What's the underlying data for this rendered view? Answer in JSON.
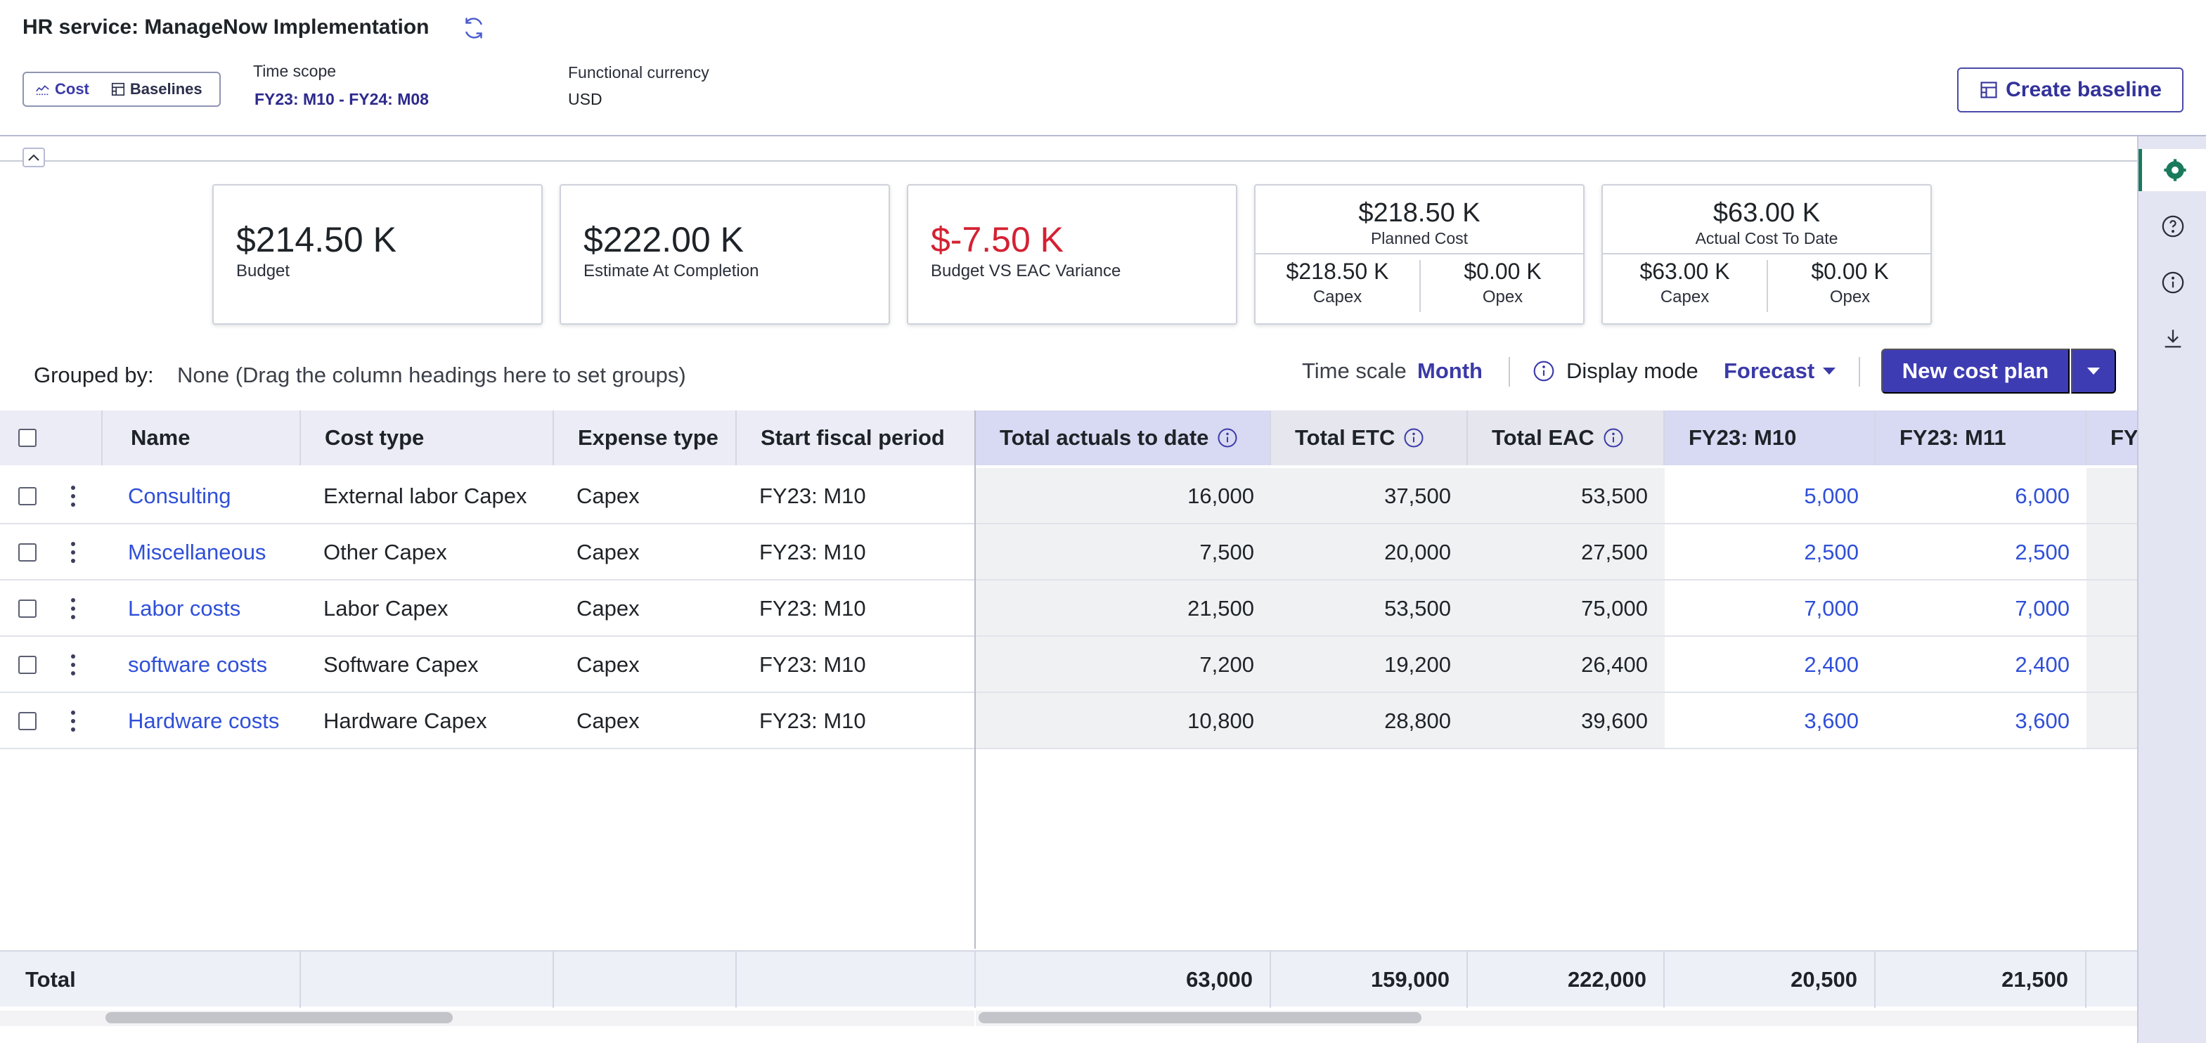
{
  "header": {
    "title": "HR service: ManageNow Implementation",
    "toggle": {
      "cost_label": "Cost",
      "baselines_label": "Baselines"
    },
    "time_scope": {
      "label": "Time scope",
      "value": "FY23: M10 - FY24: M08"
    },
    "currency": {
      "label": "Functional currency",
      "value": "USD"
    },
    "create_baseline_label": "Create baseline"
  },
  "cards": {
    "budget": {
      "value": "$214.50 K",
      "label": "Budget"
    },
    "eac": {
      "value": "$222.00 K",
      "label": "Estimate At Completion"
    },
    "variance": {
      "value": "$-7.50 K",
      "label": "Budget VS EAC Variance"
    },
    "planned": {
      "value": "$218.50 K",
      "label": "Planned Cost",
      "capex_value": "$218.50 K",
      "capex_label": "Capex",
      "opex_value": "$0.00 K",
      "opex_label": "Opex"
    },
    "actual": {
      "value": "$63.00 K",
      "label": "Actual Cost To Date",
      "capex_value": "$63.00 K",
      "capex_label": "Capex",
      "opex_value": "$0.00 K",
      "opex_label": "Opex"
    }
  },
  "toolbar": {
    "grouped_label": "Grouped by:",
    "grouped_value": "None (Drag the column headings here to set groups)",
    "time_scale_label": "Time scale",
    "time_scale_value": "Month",
    "display_mode_label": "Display mode",
    "display_mode_value": "Forecast",
    "new_cost_plan_label": "New cost plan"
  },
  "table": {
    "columns": {
      "name": "Name",
      "cost_type": "Cost type",
      "expense_type": "Expense type",
      "start_period": "Start fiscal period",
      "actuals": "Total actuals to date",
      "etc": "Total ETC",
      "eac": "Total EAC",
      "m10": "FY23: M10",
      "m11": "FY23: M11",
      "next": "FY"
    },
    "rows": [
      {
        "name": "Consulting",
        "cost_type": "External labor Capex",
        "expense_type": "Capex",
        "start_period": "FY23: M10",
        "actuals": "16,000",
        "etc": "37,500",
        "eac": "53,500",
        "m10": "5,000",
        "m11": "6,000"
      },
      {
        "name": "Miscellaneous",
        "cost_type": "Other Capex",
        "expense_type": "Capex",
        "start_period": "FY23: M10",
        "actuals": "7,500",
        "etc": "20,000",
        "eac": "27,500",
        "m10": "2,500",
        "m11": "2,500"
      },
      {
        "name": "Labor costs",
        "cost_type": "Labor Capex",
        "expense_type": "Capex",
        "start_period": "FY23: M10",
        "actuals": "21,500",
        "etc": "53,500",
        "eac": "75,000",
        "m10": "7,000",
        "m11": "7,000"
      },
      {
        "name": "software costs",
        "cost_type": "Software Capex",
        "expense_type": "Capex",
        "start_period": "FY23: M10",
        "actuals": "7,200",
        "etc": "19,200",
        "eac": "26,400",
        "m10": "2,400",
        "m11": "2,400"
      },
      {
        "name": "Hardware costs",
        "cost_type": "Hardware Capex",
        "expense_type": "Capex",
        "start_period": "FY23: M10",
        "actuals": "10,800",
        "etc": "28,800",
        "eac": "39,600",
        "m10": "3,600",
        "m11": "3,600"
      }
    ],
    "totals": {
      "label": "Total",
      "actuals": "63,000",
      "etc": "159,000",
      "eac": "222,000",
      "m10": "20,500",
      "m11": "21,500"
    }
  },
  "colors": {
    "accent": "#3e3cb3",
    "link": "#2f4fd8",
    "negative": "#d42132",
    "rail_active": "#1a7a5c"
  },
  "rail_icons": [
    "gear-icon",
    "help-icon",
    "info-icon",
    "download-icon"
  ]
}
